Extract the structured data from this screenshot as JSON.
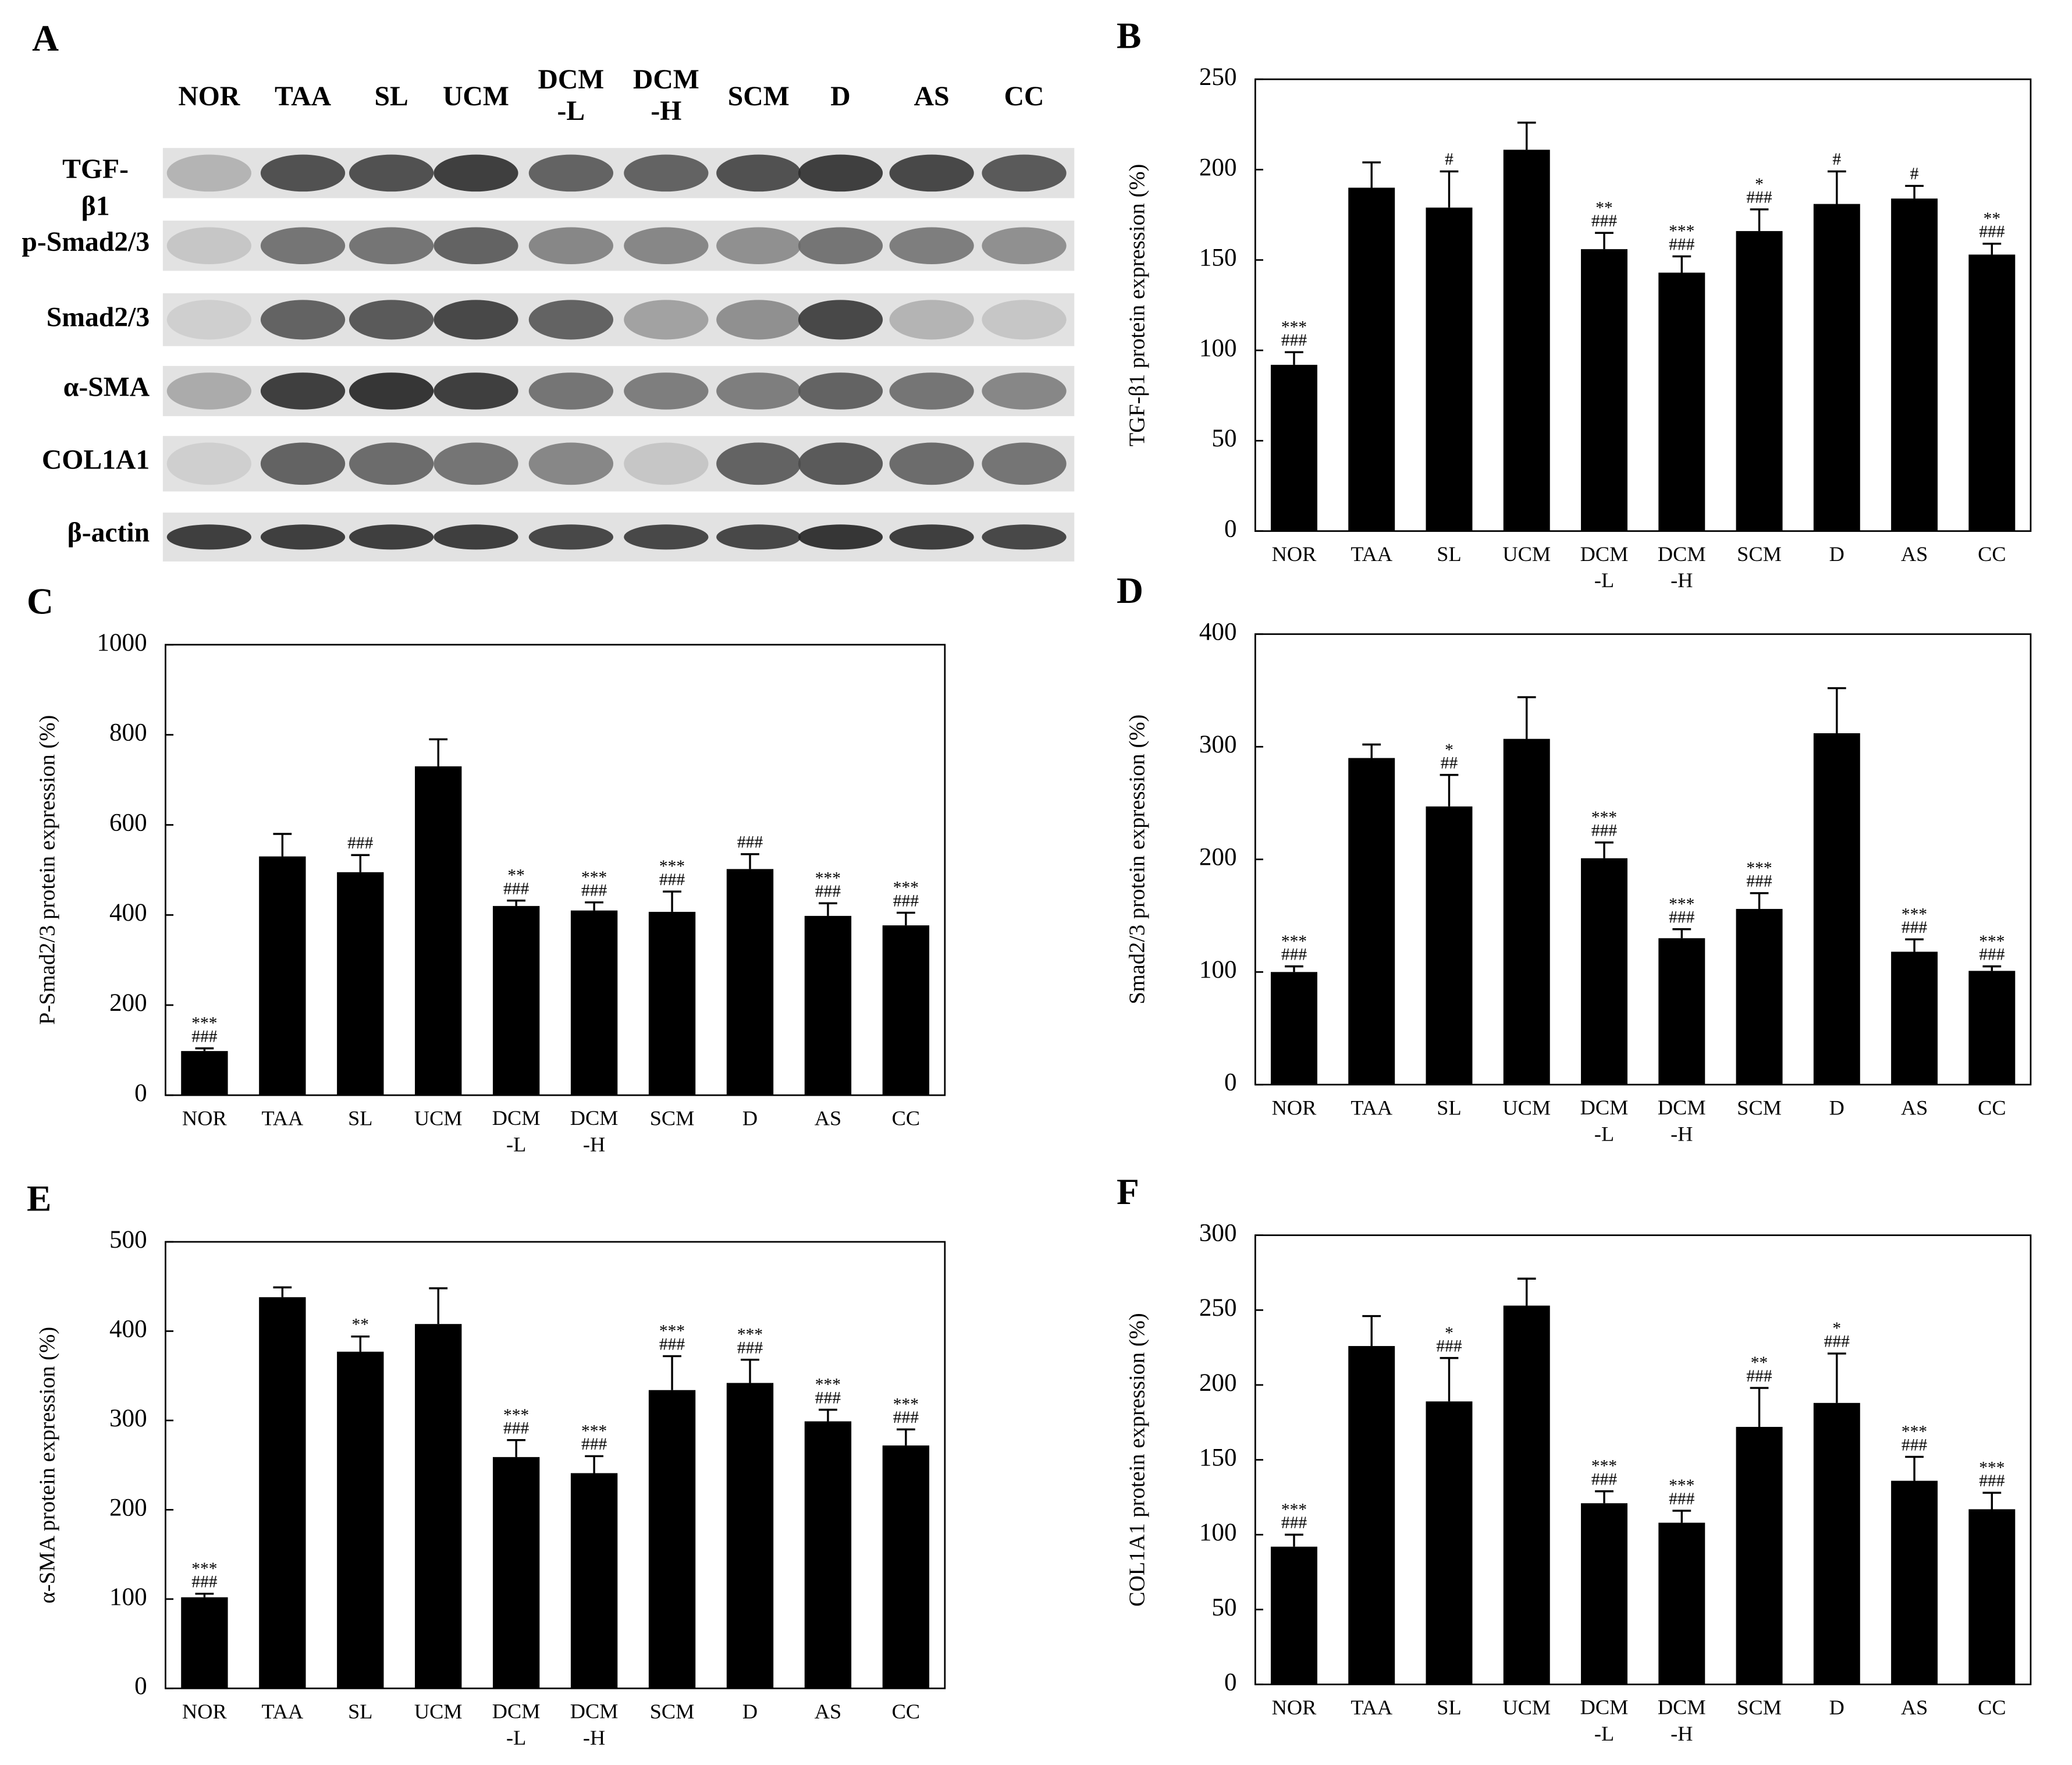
{
  "blot": {
    "panel_label": "A",
    "lanes": [
      "NOR",
      "TAA",
      "SL",
      "UCM",
      "DCM\n-L",
      "DCM\n-H",
      "SCM",
      "D",
      "AS",
      "CC"
    ],
    "rows": [
      "TGF-\nβ1",
      "p-Smad2/3",
      "Smad2/3",
      "α-SMA",
      "COL1A1",
      "β-actin"
    ]
  },
  "chart_data": [
    {
      "type": "bar",
      "panel_label": "B",
      "y_label": "TGF-β1 protein expression (%)",
      "color": "#000000",
      "categories": [
        "NOR",
        "TAA",
        "SL",
        "UCM",
        "DCM\n-L",
        "DCM\n-H",
        "SCM",
        "D",
        "AS",
        "CC"
      ],
      "values": [
        92,
        190,
        179,
        211,
        156,
        143,
        166,
        181,
        184,
        153
      ],
      "errors": [
        7,
        14,
        20,
        15,
        9,
        9,
        12,
        18,
        7,
        6
      ],
      "annotations": [
        "***\n###",
        null,
        "#",
        null,
        "**\n###",
        "***\n###",
        "*\n###",
        "#",
        "#",
        "**\n###"
      ],
      "ylim": [
        0,
        250
      ],
      "yticks": [
        0,
        50,
        100,
        150,
        200,
        250
      ]
    },
    {
      "type": "bar",
      "panel_label": "C",
      "y_label": "P-Smad2/3 protein expression (%)",
      "color": "#000000",
      "categories": [
        "NOR",
        "TAA",
        "SL",
        "UCM",
        "DCM\n-L",
        "DCM\n-H",
        "SCM",
        "D",
        "AS",
        "CC"
      ],
      "values": [
        98,
        530,
        495,
        730,
        420,
        410,
        407,
        502,
        398,
        377
      ],
      "errors": [
        6,
        50,
        38,
        60,
        12,
        18,
        45,
        33,
        28,
        28
      ],
      "annotations": [
        "***\n###",
        null,
        "###",
        null,
        "**\n###",
        "***\n###",
        "***\n###",
        "###",
        "***\n###",
        "***\n###"
      ],
      "ylim": [
        0,
        1000
      ],
      "yticks": [
        0,
        200,
        400,
        600,
        800,
        1000
      ]
    },
    {
      "type": "bar",
      "panel_label": "D",
      "y_label": "Smad2/3 protein expression (%)",
      "color": "#000000",
      "categories": [
        "NOR",
        "TAA",
        "SL",
        "UCM",
        "DCM\n-L",
        "DCM\n-H",
        "SCM",
        "D",
        "AS",
        "CC"
      ],
      "values": [
        100,
        290,
        247,
        307,
        201,
        130,
        156,
        312,
        118,
        101
      ],
      "errors": [
        5,
        12,
        28,
        37,
        14,
        8,
        14,
        40,
        11,
        4
      ],
      "annotations": [
        "***\n###",
        null,
        "*\n##",
        null,
        "***\n###",
        "***\n###",
        "***\n###",
        null,
        "***\n###",
        "***\n###"
      ],
      "ylim": [
        0,
        400
      ],
      "yticks": [
        0,
        100,
        200,
        300,
        400
      ]
    },
    {
      "type": "bar",
      "panel_label": "E",
      "y_label": "α-SMA protein expression (%)",
      "color": "#000000",
      "categories": [
        "NOR",
        "TAA",
        "SL",
        "UCM",
        "DCM\n-L",
        "DCM\n-H",
        "SCM",
        "D",
        "AS",
        "CC"
      ],
      "values": [
        102,
        438,
        377,
        408,
        259,
        241,
        334,
        342,
        299,
        272
      ],
      "errors": [
        4,
        11,
        17,
        40,
        19,
        19,
        38,
        26,
        13,
        18
      ],
      "annotations": [
        "***\n###",
        null,
        "**",
        null,
        "***\n###",
        "***\n###",
        "***\n###",
        "***\n###",
        "***\n###",
        "***\n###"
      ],
      "ylim": [
        0,
        500
      ],
      "yticks": [
        0,
        100,
        200,
        300,
        400,
        500
      ]
    },
    {
      "type": "bar",
      "panel_label": "F",
      "y_label": "COL1A1 protein expression (%)",
      "color": "#000000",
      "categories": [
        "NOR",
        "TAA",
        "SL",
        "UCM",
        "DCM\n-L",
        "DCM\n-H",
        "SCM",
        "D",
        "AS",
        "CC"
      ],
      "values": [
        92,
        226,
        189,
        253,
        121,
        108,
        172,
        188,
        136,
        117
      ],
      "errors": [
        8,
        20,
        29,
        18,
        8,
        8,
        26,
        33,
        16,
        11
      ],
      "annotations": [
        "***\n###",
        null,
        "*\n###",
        null,
        "***\n###",
        "***\n###",
        "**\n###",
        "*\n###",
        "***\n###",
        "***\n###"
      ],
      "ylim": [
        0,
        300
      ],
      "yticks": [
        0,
        50,
        100,
        150,
        200,
        250,
        300
      ]
    }
  ]
}
